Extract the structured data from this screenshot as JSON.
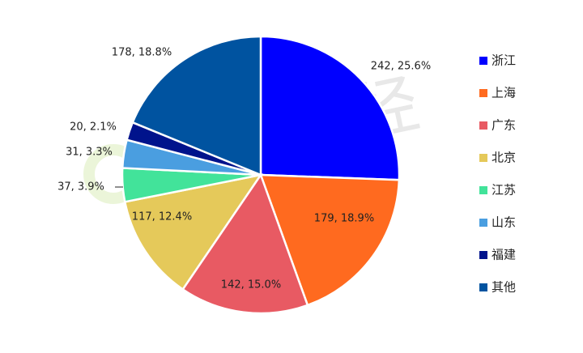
{
  "chart_data": {
    "type": "pie",
    "watermark": "零壹财经",
    "categories": [
      "浙江",
      "上海",
      "广东",
      "北京",
      "江苏",
      "山东",
      "福建",
      "其他"
    ],
    "values": [
      242,
      179,
      142,
      117,
      37,
      31,
      20,
      178
    ],
    "value_labels": [
      "242, 25.6%",
      "179, 18.9%",
      "142, 15.0%",
      "117, 12.4%",
      "37, 3.9%",
      "31, 3.3%",
      "20, 2.1%",
      "178, 18.8%"
    ],
    "colors": [
      "#0000ff",
      "#ff6a1f",
      "#e85a63",
      "#e5c95a",
      "#42e39a",
      "#4a9ee0",
      "#00138c",
      "#0053a0"
    ],
    "legend": "right"
  }
}
